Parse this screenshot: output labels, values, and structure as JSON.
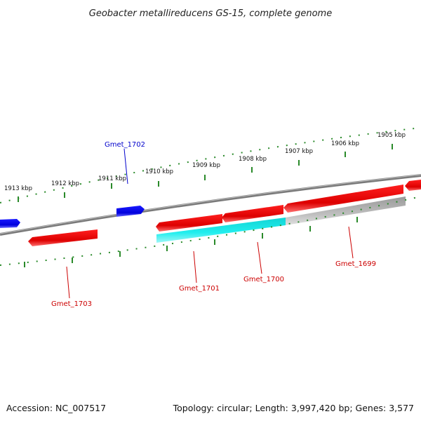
{
  "title": "Geobacter metallireducens GS-15, complete genome",
  "footer": {
    "accession": "Accession: NC_007517",
    "summary": "Topology: circular; Length: 3,997,420 bp; Genes: 3,577"
  },
  "colors": {
    "forward_gene": "#ee0000",
    "reverse_gene": "#0000ee",
    "highlight_gene": "#22e6e6",
    "gray_gene": "#b4b4b4",
    "backbone": "#808080",
    "ticks": "#2a8a2a",
    "forward_label": "#cc0000",
    "reverse_label": "#0000cc"
  },
  "kbp_ticks": [
    "1913 kbp",
    "1912 kbp",
    "1911 kbp",
    "1910 kbp",
    "1909 kbp",
    "1908 kbp",
    "1907 kbp",
    "1906 kbp",
    "1905 kbp"
  ],
  "genes": [
    {
      "label": "Gmet_1702",
      "strand": "reverse"
    },
    {
      "label": "Gmet_1701",
      "strand": "forward"
    },
    {
      "label": "Gmet_1700",
      "strand": "forward"
    },
    {
      "label": "Gmet_1699",
      "strand": "forward"
    },
    {
      "label": "Gmet_1703",
      "strand": "forward"
    }
  ]
}
